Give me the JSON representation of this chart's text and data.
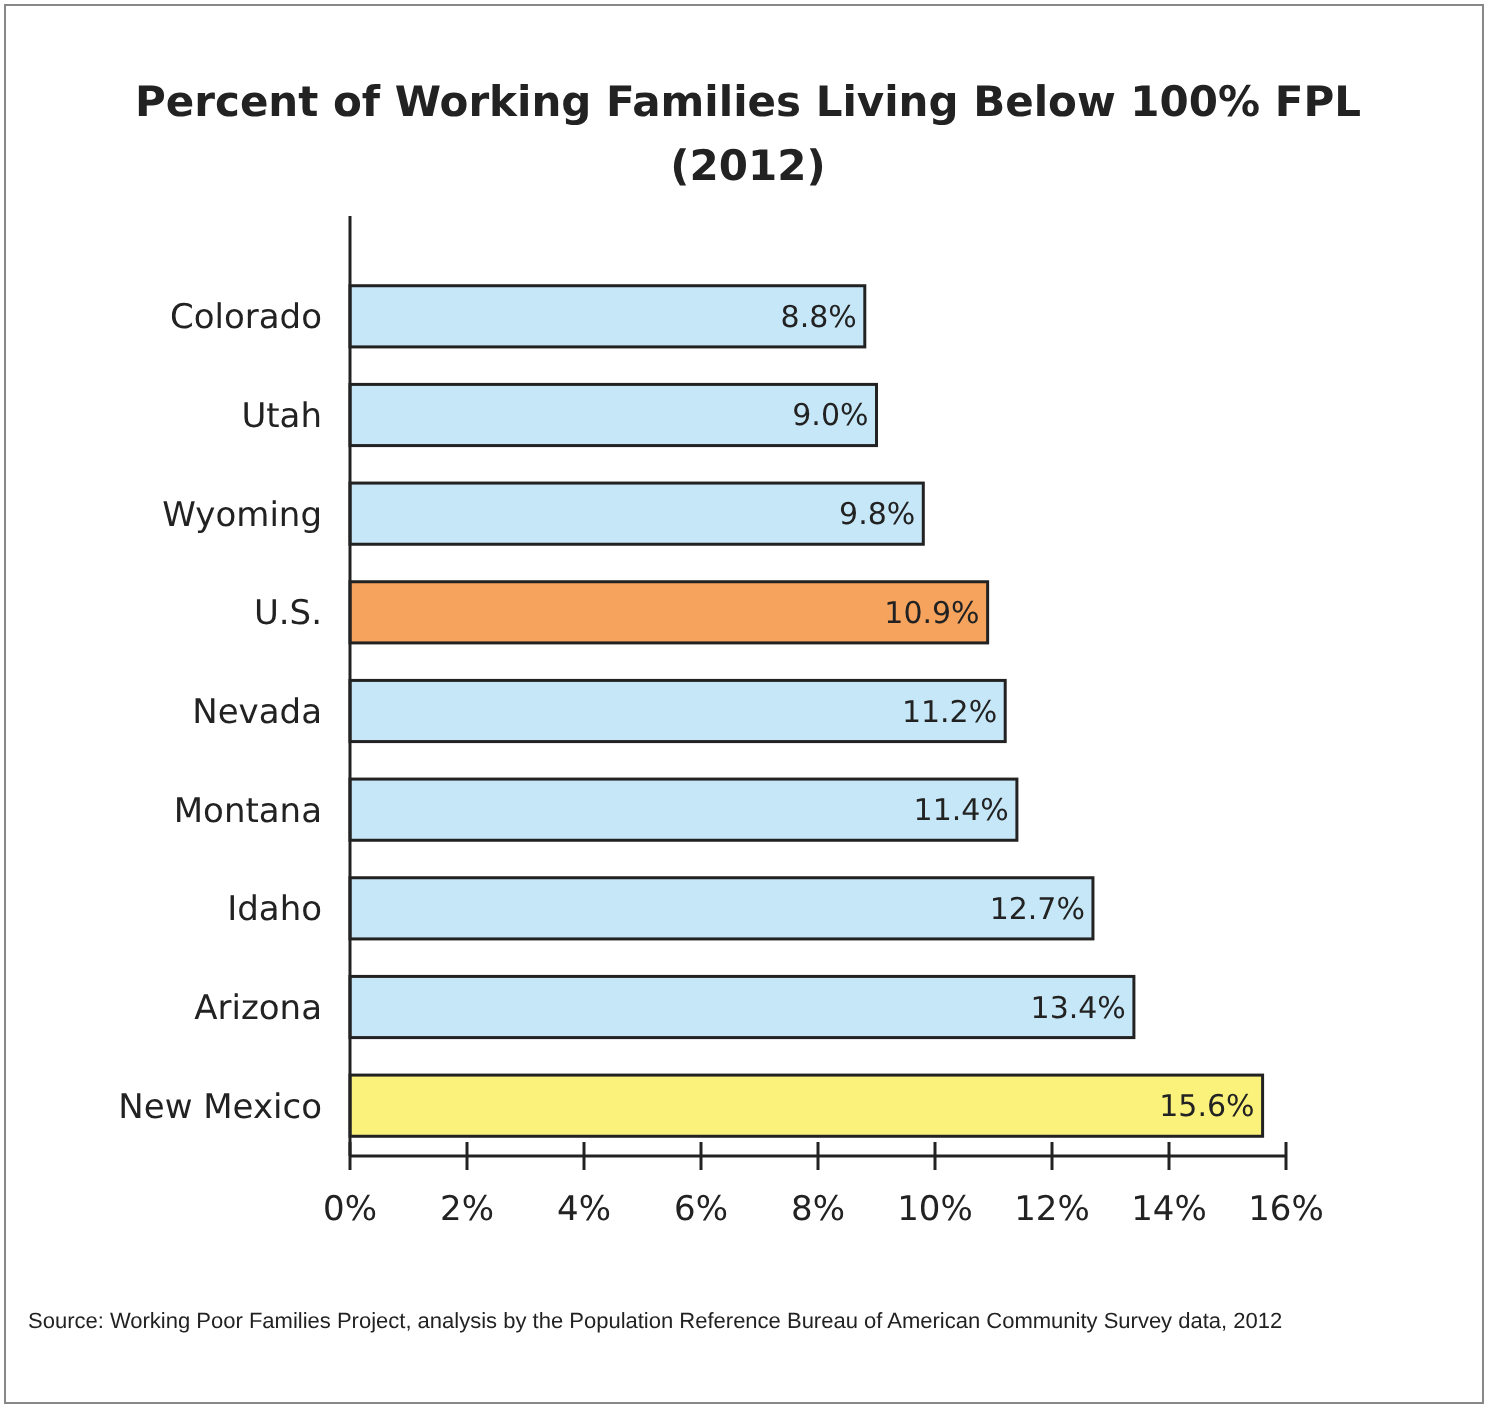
{
  "chart_data": {
    "type": "bar",
    "orientation": "horizontal",
    "title": "Percent of Working Families Living Below 100% FPL (2012)",
    "categories": [
      "Colorado",
      "Utah",
      "Wyoming",
      "U.S.",
      "Nevada",
      "Montana",
      "Idaho",
      "Arizona",
      "New Mexico"
    ],
    "values": [
      8.8,
      9.0,
      9.8,
      10.9,
      11.2,
      11.4,
      12.7,
      13.4,
      15.6
    ],
    "colors": [
      "#c6e7f7",
      "#c6e7f7",
      "#c6e7f7",
      "#f6a35e",
      "#c6e7f7",
      "#c6e7f7",
      "#c6e7f7",
      "#c6e7f7",
      "#fbf27c"
    ],
    "value_labels": [
      "8.8%",
      "9.0%",
      "9.8%",
      "10.9%",
      "11.2%",
      "11.4%",
      "12.7%",
      "13.4%",
      "15.6%"
    ],
    "xlim": [
      0,
      16
    ],
    "xticks": [
      {
        "value": 0,
        "label": "0%"
      },
      {
        "value": 2,
        "label": "2%"
      },
      {
        "value": 4,
        "label": "4%"
      },
      {
        "value": 6,
        "label": "6%"
      },
      {
        "value": 8,
        "label": "8%"
      },
      {
        "value": 10,
        "label": "10%"
      },
      {
        "value": 12,
        "label": "12%"
      },
      {
        "value": 14,
        "label": "14%"
      },
      {
        "value": 16,
        "label": "16%"
      }
    ],
    "grid": false,
    "annotations": [
      "Source: Working Poor Families Project, analysis by the Population Reference Bureau of American Community Survey data, 2012"
    ]
  }
}
